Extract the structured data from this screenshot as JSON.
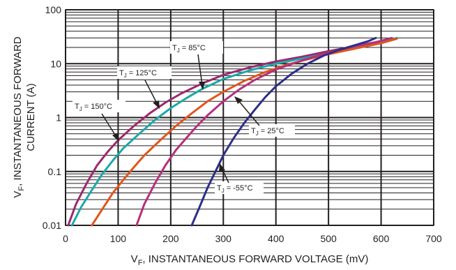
{
  "chart_data": {
    "type": "line",
    "title": "",
    "x_scale": "linear",
    "y_scale": "log",
    "xlim": [
      0,
      700
    ],
    "ylim": [
      0.01,
      100
    ],
    "grid": true,
    "legend": "none",
    "xlabel": {
      "main": "V",
      "sub": "F",
      "rest": ", INSTANTANEOUS FORWARD VOLTAGE (mV)"
    },
    "ylabel": {
      "main": "V",
      "sub": "F",
      "rest": ", INSTANTANEOUS FORWARD",
      "line2": "CURRENT (A)"
    },
    "x_ticks": [
      0,
      100,
      200,
      300,
      400,
      500,
      600,
      700
    ],
    "x_tick_labels": [
      "0",
      "100",
      "200",
      "300",
      "400",
      "500",
      "600",
      "700"
    ],
    "y_ticks": [
      0.01,
      0.1,
      1,
      10,
      100
    ],
    "y_tick_labels": [
      "0.01",
      "0.1",
      "1",
      "10",
      "100"
    ],
    "series": [
      {
        "color": "#9b2a6e",
        "x": [
          5,
          20,
          40,
          60,
          80,
          100,
          130,
          160,
          190,
          220,
          260,
          300,
          350,
          400,
          450,
          500,
          550,
          590,
          620
        ],
        "y": [
          0.01,
          0.025,
          0.06,
          0.13,
          0.23,
          0.38,
          0.7,
          1.2,
          1.9,
          2.8,
          4.3,
          6.2,
          8.5,
          11,
          13.5,
          17,
          21,
          25,
          29
        ]
      },
      {
        "color": "#1aa9a8",
        "x": [
          12,
          30,
          50,
          70,
          90,
          110,
          140,
          170,
          200,
          230,
          260,
          300,
          350,
          400,
          450,
          500,
          550,
          600,
          630
        ],
        "y": [
          0.01,
          0.022,
          0.045,
          0.09,
          0.16,
          0.27,
          0.5,
          0.9,
          1.5,
          2.3,
          3.4,
          5.2,
          7.5,
          10,
          12.5,
          15.5,
          20,
          25,
          30
        ]
      },
      {
        "color": "#e0561b",
        "x": [
          50,
          70,
          90,
          110,
          130,
          150,
          180,
          210,
          240,
          270,
          300,
          340,
          380,
          420,
          460,
          500,
          550,
          600,
          630
        ],
        "y": [
          0.01,
          0.02,
          0.04,
          0.07,
          0.12,
          0.2,
          0.38,
          0.7,
          1.2,
          2.0,
          3.0,
          4.8,
          7.0,
          9.5,
          12,
          15,
          19,
          24,
          29
        ]
      },
      {
        "color": "#b5307b",
        "x": [
          135,
          150,
          170,
          190,
          210,
          230,
          250,
          270,
          300,
          330,
          360,
          400,
          450,
          500,
          550,
          590,
          620
        ],
        "y": [
          0.01,
          0.025,
          0.06,
          0.13,
          0.25,
          0.42,
          0.7,
          1.1,
          2.0,
          3.3,
          5.0,
          7.8,
          11.5,
          16,
          21,
          25,
          30
        ]
      },
      {
        "color": "#2d2f87",
        "x": [
          240,
          255,
          270,
          285,
          300,
          320,
          340,
          360,
          380,
          400,
          430,
          460,
          490,
          520,
          550,
          575,
          590
        ],
        "y": [
          0.01,
          0.022,
          0.05,
          0.1,
          0.2,
          0.42,
          0.8,
          1.4,
          2.4,
          3.8,
          6.5,
          10,
          14,
          18,
          22,
          26,
          30
        ]
      }
    ],
    "annotations": [
      {
        "main": "T",
        "sub": "J",
        "rest": " = 150°C"
      },
      {
        "main": "T",
        "sub": "J",
        "rest": " = 125°C"
      },
      {
        "main": "T",
        "sub": "J",
        "rest": " = 85°C"
      },
      {
        "main": "T",
        "sub": "J",
        "rest": " = 25°C"
      },
      {
        "main": "T",
        "sub": "J",
        "rest": " = -55°C"
      }
    ]
  }
}
